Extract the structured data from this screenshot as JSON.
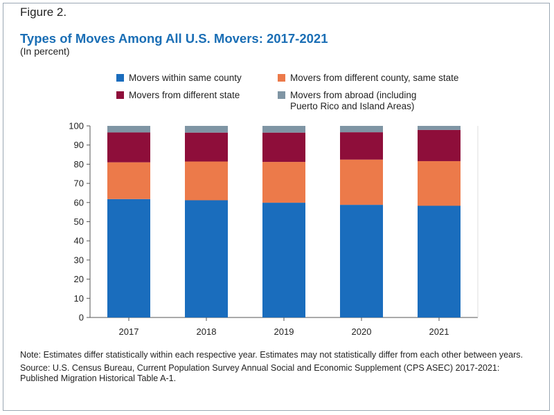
{
  "figure_label": "Figure 2.",
  "title": "Types of Moves Among All U.S. Movers: 2017-2021",
  "subtitle": "(In percent)",
  "colors": {
    "same_county": "#1a6dbd",
    "diff_county": "#ec7a4a",
    "diff_state": "#8e0e3a",
    "abroad": "#7f95a4",
    "axis": "#555555",
    "grid": "#dddddd"
  },
  "legend": [
    {
      "label": "Movers within same county",
      "color": "#1a6dbd"
    },
    {
      "label": "Movers from different county, same state",
      "color": "#ec7a4a"
    },
    {
      "label": "Movers from different state",
      "color": "#8e0e3a"
    },
    {
      "label": "Movers from abroad (including",
      "label_line2": "Puerto Rico and Island Areas)",
      "color": "#7f95a4"
    }
  ],
  "chart_data": {
    "type": "bar",
    "stacked": true,
    "categories": [
      "2017",
      "2018",
      "2019",
      "2020",
      "2021"
    ],
    "series": [
      {
        "name": "Movers within same county",
        "values": [
          61.8,
          61.2,
          59.9,
          58.8,
          58.3
        ]
      },
      {
        "name": "Movers from different county, same state",
        "values": [
          19.2,
          20.2,
          21.3,
          23.6,
          23.3
        ]
      },
      {
        "name": "Movers from different state",
        "values": [
          15.6,
          15.1,
          15.3,
          14.3,
          16.3
        ]
      },
      {
        "name": "Movers from abroad (including Puerto Rico and Island Areas)",
        "values": [
          3.4,
          3.5,
          3.5,
          3.3,
          2.1
        ]
      }
    ],
    "y_ticks": [
      "0",
      "10",
      "20",
      "30",
      "40",
      "50",
      "60",
      "70",
      "80",
      "90",
      "100"
    ],
    "ylim": [
      0,
      100
    ],
    "grid": false
  },
  "notes": {
    "note": "Note: Estimates differ statistically within each respective year. Estimates may not statistically differ from each other between years.",
    "source": "Source: U.S. Census Bureau, Current Population Survey Annual Social and Economic Supplement (CPS ASEC) 2017-2021: Published Migration Historical Table A-1."
  }
}
